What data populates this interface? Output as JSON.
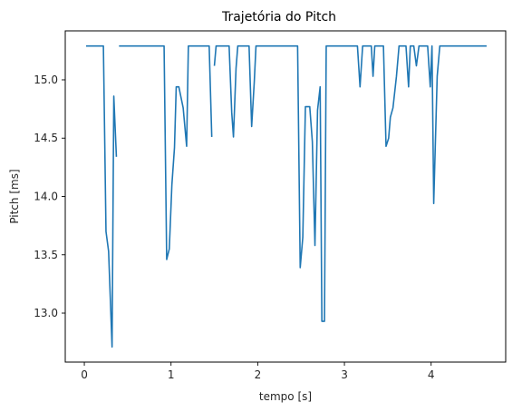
{
  "chart_data": {
    "type": "line",
    "title": "Trajetória do Pitch",
    "xlabel": "tempo [s]",
    "ylabel": "Pitch [ms]",
    "xlim": [
      -0.22,
      4.86
    ],
    "ylim": [
      12.58,
      15.42
    ],
    "xticks": [
      0,
      1,
      2,
      3,
      4
    ],
    "xtick_labels": [
      "0",
      "1",
      "2",
      "3",
      "4"
    ],
    "yticks": [
      13.0,
      13.5,
      14.0,
      14.5,
      15.0
    ],
    "ytick_labels": [
      "13.0",
      "13.5",
      "14.0",
      "14.5",
      "15.0"
    ],
    "grid": false,
    "series": [
      {
        "name": "pitch",
        "color": "#1f77b4",
        "segments": [
          [
            [
              0.02,
              15.29
            ],
            [
              0.22,
              15.29
            ],
            [
              0.25,
              13.7
            ],
            [
              0.28,
              13.53
            ],
            [
              0.32,
              12.71
            ],
            [
              0.34,
              14.86
            ],
            [
              0.37,
              14.34
            ]
          ],
          [
            [
              0.4,
              15.29
            ],
            [
              0.92,
              15.29
            ],
            [
              0.95,
              13.46
            ],
            [
              0.98,
              13.55
            ],
            [
              1.01,
              14.1
            ],
            [
              1.04,
              14.42
            ],
            [
              1.06,
              14.94
            ],
            [
              1.09,
              14.94
            ],
            [
              1.14,
              14.76
            ],
            [
              1.18,
              14.43
            ],
            [
              1.2,
              15.29
            ],
            [
              1.44,
              15.29
            ],
            [
              1.47,
              14.51
            ]
          ],
          [
            [
              1.5,
              15.12
            ],
            [
              1.52,
              15.29
            ],
            [
              1.67,
              15.29
            ],
            [
              1.7,
              14.72
            ],
            [
              1.72,
              14.51
            ],
            [
              1.75,
              15.1
            ],
            [
              1.77,
              15.29
            ],
            [
              1.9,
              15.29
            ],
            [
              1.93,
              14.6
            ],
            [
              1.96,
              14.98
            ],
            [
              1.98,
              15.29
            ],
            [
              2.46,
              15.29
            ],
            [
              2.49,
              13.39
            ],
            [
              2.52,
              13.65
            ],
            [
              2.55,
              14.77
            ],
            [
              2.6,
              14.77
            ],
            [
              2.63,
              14.47
            ],
            [
              2.66,
              13.58
            ],
            [
              2.69,
              14.74
            ],
            [
              2.72,
              14.94
            ],
            [
              2.74,
              12.93
            ],
            [
              2.77,
              12.93
            ],
            [
              2.79,
              15.29
            ],
            [
              3.15,
              15.29
            ],
            [
              3.18,
              14.94
            ],
            [
              3.21,
              15.29
            ],
            [
              3.31,
              15.29
            ],
            [
              3.33,
              15.03
            ],
            [
              3.35,
              15.29
            ],
            [
              3.45,
              15.29
            ],
            [
              3.48,
              14.43
            ],
            [
              3.51,
              14.5
            ],
            [
              3.53,
              14.68
            ],
            [
              3.56,
              14.76
            ],
            [
              3.6,
              15.03
            ],
            [
              3.63,
              15.29
            ],
            [
              3.71,
              15.29
            ],
            [
              3.74,
              14.94
            ],
            [
              3.76,
              15.29
            ],
            [
              3.8,
              15.29
            ],
            [
              3.83,
              15.12
            ],
            [
              3.86,
              15.29
            ],
            [
              3.96,
              15.29
            ],
            [
              3.99,
              14.94
            ],
            [
              4.01,
              15.29
            ],
            [
              4.03,
              13.94
            ],
            [
              4.07,
              15.03
            ],
            [
              4.1,
              15.29
            ],
            [
              4.64,
              15.29
            ]
          ]
        ]
      }
    ]
  }
}
